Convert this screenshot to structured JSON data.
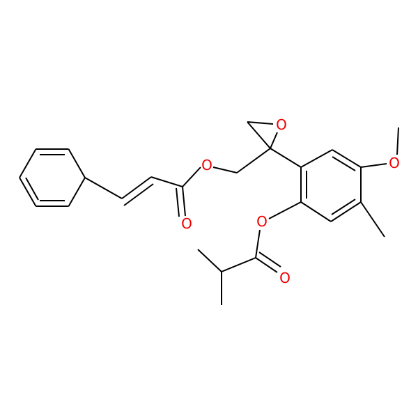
{
  "atoms": [
    {
      "label": "O"
    },
    {
      "label": "O"
    },
    {
      "label": "O"
    },
    {
      "label": "O"
    },
    {
      "label": "O"
    },
    {
      "label": "O"
    }
  ]
}
